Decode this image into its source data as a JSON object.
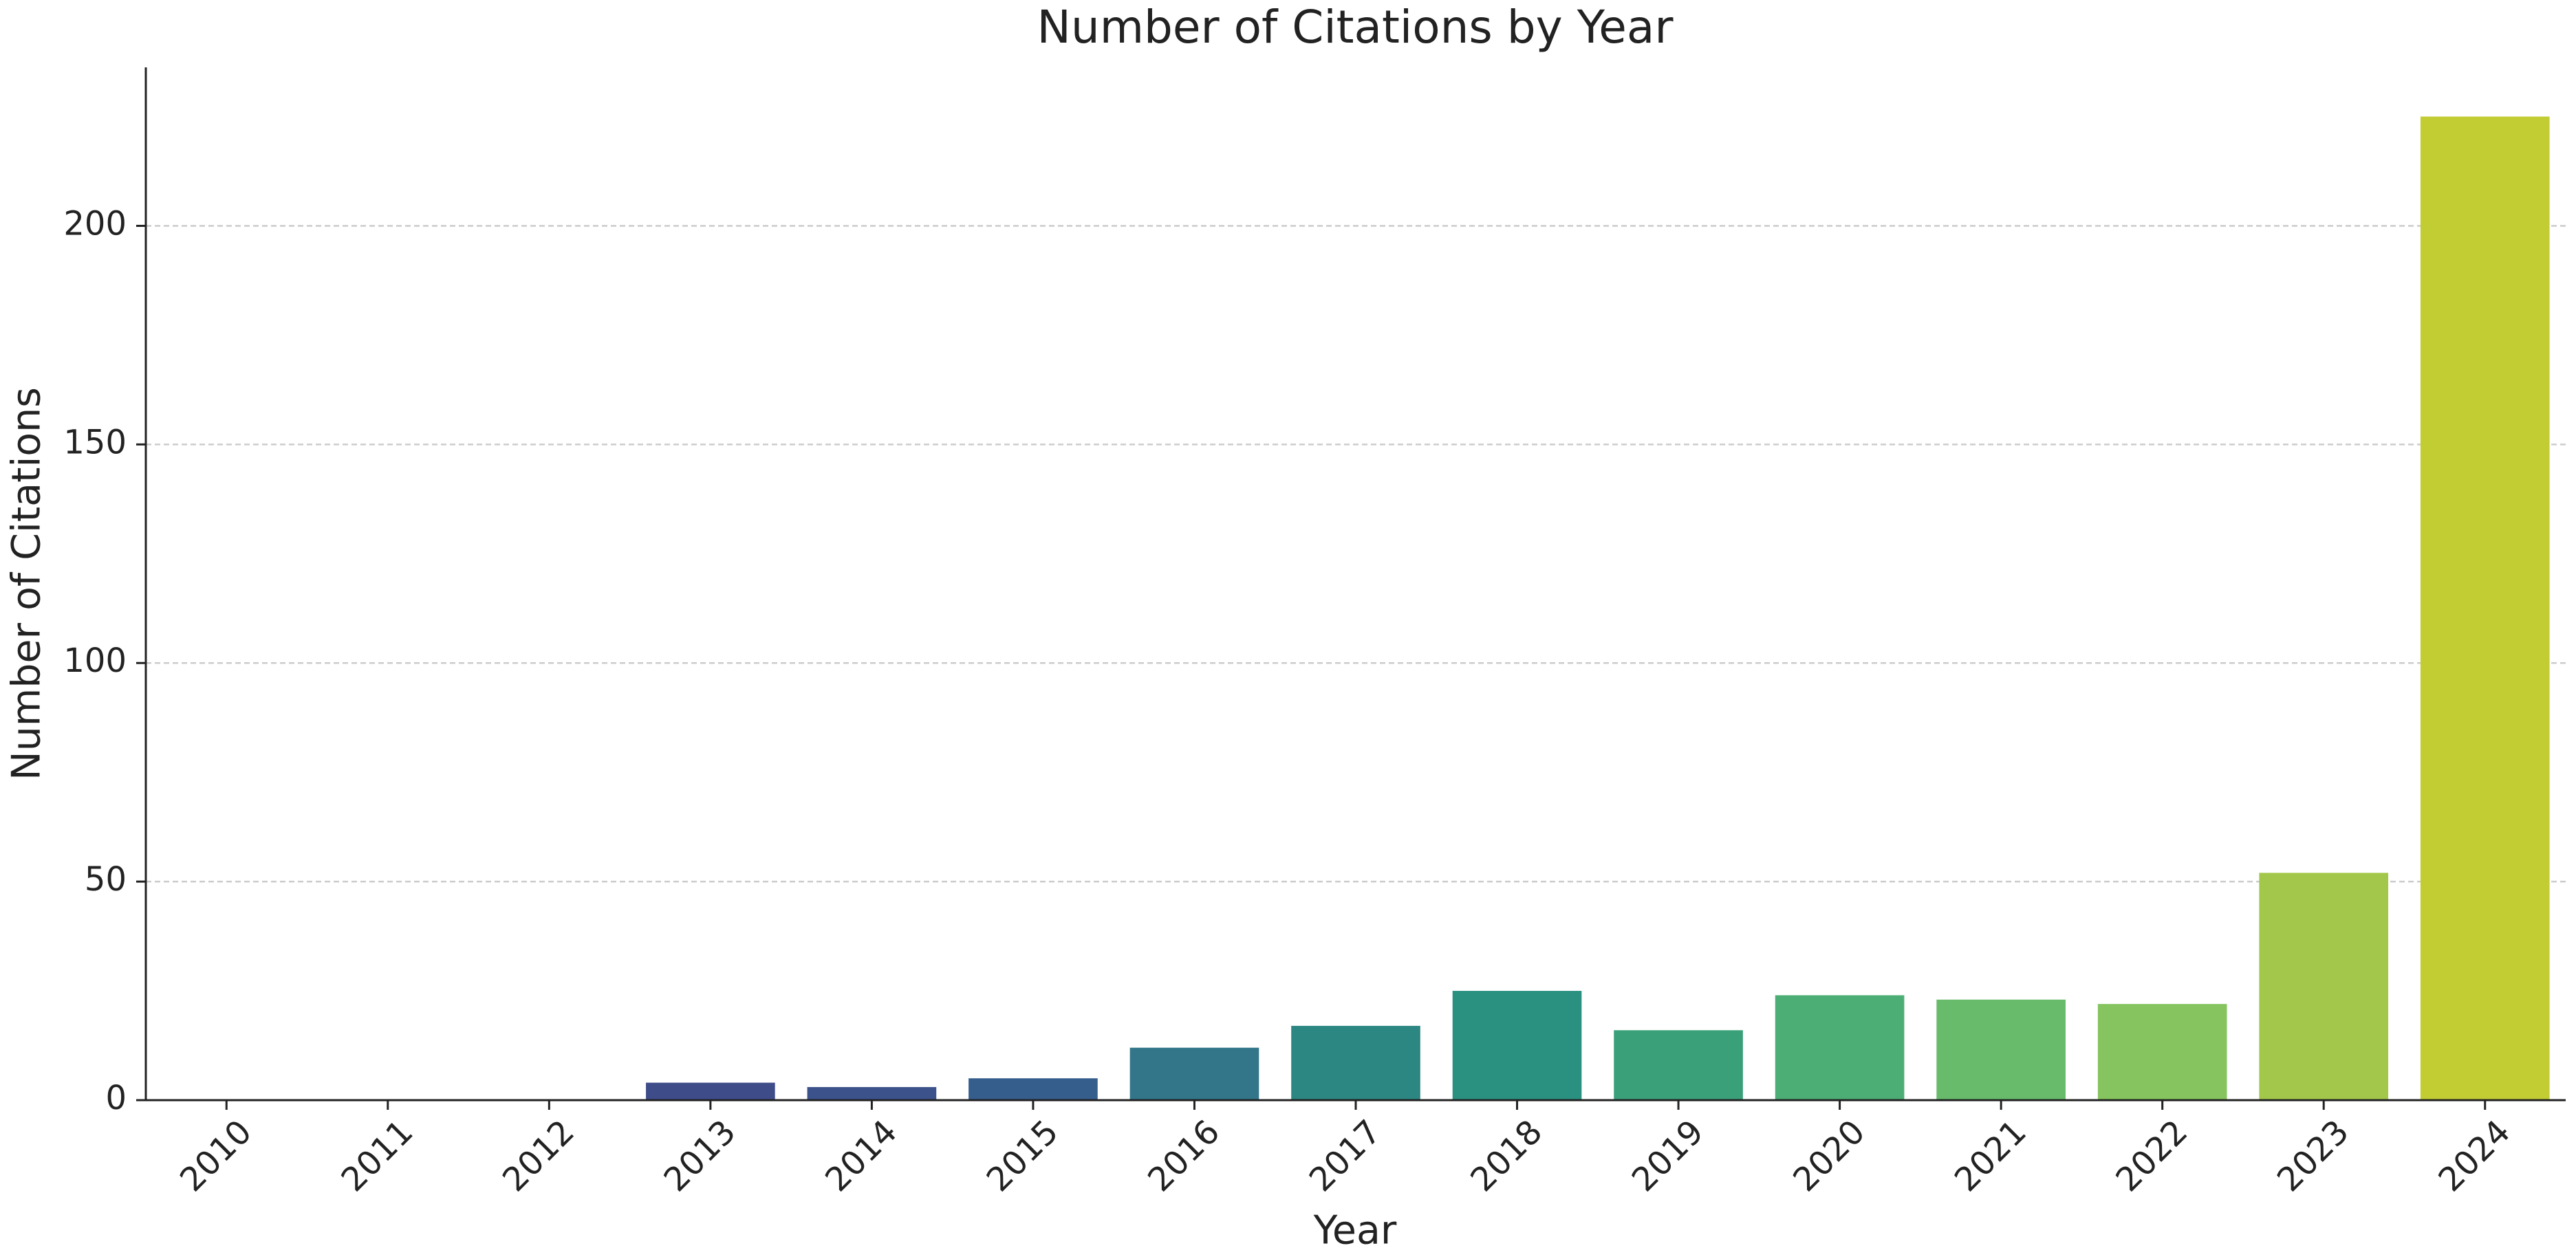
{
  "chart_data": {
    "type": "bar",
    "title": "Number of Citations by Year",
    "x_label": "Year",
    "y_label": "Number of Citations",
    "categories": [
      "2010",
      "2011",
      "2012",
      "2013",
      "2014",
      "2015",
      "2016",
      "2017",
      "2018",
      "2019",
      "2020",
      "2021",
      "2022",
      "2023",
      "2024"
    ],
    "values": [
      0,
      0,
      0,
      4,
      3,
      5,
      12,
      17,
      25,
      16,
      24,
      23,
      22,
      52,
      225
    ],
    "colors": [
      "#481a6c",
      "#472f7d",
      "#414487",
      "#3e4c8a",
      "#3b528b",
      "#355e8d",
      "#33768a",
      "#2c8681",
      "#2a9180",
      "#3aa07a",
      "#4cae74",
      "#67bb6b",
      "#85c45e",
      "#a3c74a",
      "#c2cc33"
    ],
    "ylim": [
      0,
      236.25
    ],
    "yticks": [
      0,
      50,
      100,
      150,
      200
    ],
    "grid": true
  }
}
